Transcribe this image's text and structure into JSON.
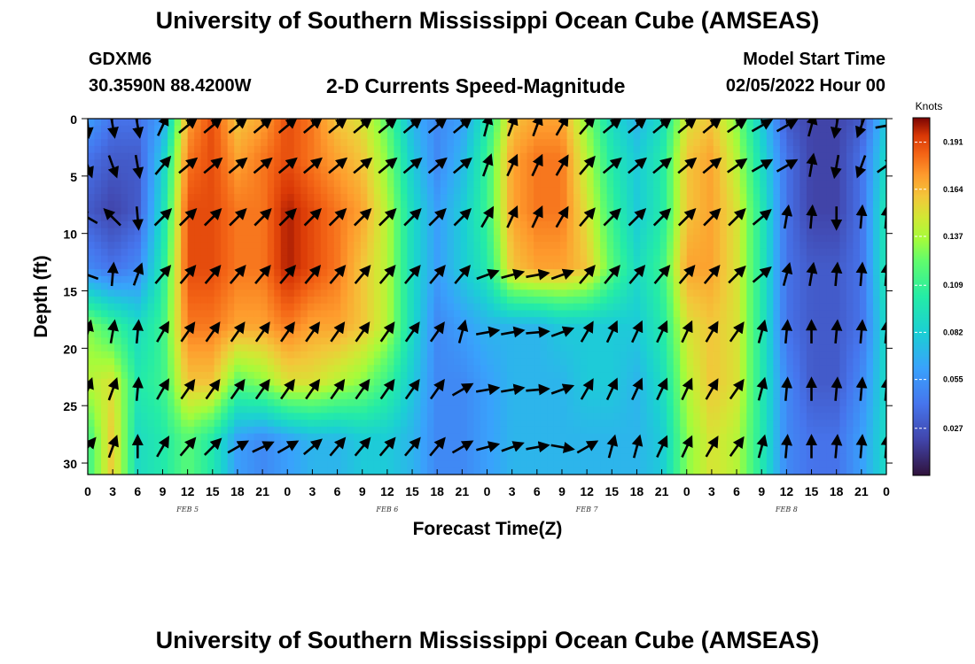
{
  "header": {
    "title": "University of Southern Mississippi Ocean Cube (AMSEAS)",
    "station": "GDXM6",
    "coords": "30.3590N  88.4200W",
    "subtitle": "2-D Currents Speed-Magnitude",
    "model_start_label": "Model Start Time",
    "model_start_value": "02/05/2022 Hour 00"
  },
  "footer": {
    "title": "University of Southern Mississippi Ocean Cube (AMSEAS)"
  },
  "chart_data": {
    "type": "heatmap",
    "xlabel": "Forecast Time(Z)",
    "ylabel": "Depth (ft)",
    "x_ticks": [
      "0",
      "3",
      "6",
      "9",
      "12",
      "15",
      "18",
      "21",
      "0",
      "3",
      "6",
      "9",
      "12",
      "15",
      "18",
      "21",
      "0",
      "3",
      "6",
      "9",
      "12",
      "15",
      "18",
      "21",
      "0",
      "3",
      "6",
      "9",
      "12",
      "15",
      "18",
      "21",
      "0"
    ],
    "day_labels": [
      {
        "label": "FEB 5",
        "hour": 12
      },
      {
        "label": "FEB 6",
        "hour": 36
      },
      {
        "label": "FEB 7",
        "hour": 60
      },
      {
        "label": "FEB 8",
        "hour": 84
      }
    ],
    "x_range_hours": [
      0,
      96
    ],
    "y_ticks": [
      0,
      5,
      10,
      15,
      20,
      25,
      30
    ],
    "y_range": [
      0,
      31
    ],
    "colorbar": {
      "unit": "Knots",
      "labels": [
        "0.191",
        "0.164",
        "0.137",
        "0.109",
        "0.082",
        "0.055",
        "0.027"
      ],
      "range": [
        0.0,
        0.205
      ]
    },
    "depth_rows": [
      0,
      3.5,
      8,
      13,
      18,
      23,
      28
    ],
    "time_hours": [
      0,
      3,
      6,
      9,
      12,
      15,
      18,
      21,
      24,
      27,
      30,
      33,
      36,
      39,
      42,
      45,
      48,
      51,
      54,
      57,
      60,
      63,
      66,
      69,
      72,
      75,
      78,
      81,
      84,
      87,
      90,
      93,
      96
    ],
    "speed_knots": [
      [
        0.06,
        0.04,
        0.04,
        0.06,
        0.17,
        0.19,
        0.16,
        0.17,
        0.19,
        0.18,
        0.16,
        0.15,
        0.12,
        0.07,
        0.05,
        0.06,
        0.1,
        0.16,
        0.17,
        0.17,
        0.13,
        0.09,
        0.07,
        0.09,
        0.15,
        0.16,
        0.13,
        0.08,
        0.03,
        0.02,
        0.02,
        0.03,
        0.08
      ],
      [
        0.04,
        0.03,
        0.03,
        0.08,
        0.18,
        0.19,
        0.17,
        0.18,
        0.19,
        0.18,
        0.17,
        0.16,
        0.13,
        0.08,
        0.05,
        0.07,
        0.11,
        0.17,
        0.18,
        0.18,
        0.14,
        0.1,
        0.08,
        0.1,
        0.16,
        0.17,
        0.14,
        0.09,
        0.04,
        0.02,
        0.02,
        0.04,
        0.09
      ],
      [
        0.03,
        0.02,
        0.03,
        0.09,
        0.19,
        0.19,
        0.18,
        0.18,
        0.2,
        0.19,
        0.18,
        0.17,
        0.14,
        0.09,
        0.06,
        0.08,
        0.11,
        0.17,
        0.18,
        0.18,
        0.15,
        0.11,
        0.08,
        0.1,
        0.16,
        0.17,
        0.15,
        0.1,
        0.04,
        0.02,
        0.02,
        0.04,
        0.1
      ],
      [
        0.05,
        0.04,
        0.05,
        0.1,
        0.19,
        0.19,
        0.18,
        0.18,
        0.2,
        0.19,
        0.18,
        0.16,
        0.14,
        0.09,
        0.06,
        0.08,
        0.1,
        0.16,
        0.17,
        0.17,
        0.16,
        0.12,
        0.09,
        0.11,
        0.17,
        0.17,
        0.15,
        0.1,
        0.04,
        0.03,
        0.03,
        0.04,
        0.1
      ],
      [
        0.13,
        0.11,
        0.09,
        0.11,
        0.18,
        0.18,
        0.17,
        0.17,
        0.18,
        0.17,
        0.17,
        0.16,
        0.14,
        0.09,
        0.05,
        0.06,
        0.07,
        0.07,
        0.07,
        0.08,
        0.08,
        0.08,
        0.08,
        0.1,
        0.15,
        0.16,
        0.15,
        0.1,
        0.04,
        0.03,
        0.03,
        0.04,
        0.09
      ],
      [
        0.14,
        0.15,
        0.1,
        0.11,
        0.16,
        0.16,
        0.12,
        0.13,
        0.15,
        0.15,
        0.14,
        0.13,
        0.11,
        0.08,
        0.05,
        0.05,
        0.06,
        0.07,
        0.07,
        0.07,
        0.08,
        0.08,
        0.07,
        0.09,
        0.14,
        0.16,
        0.15,
        0.1,
        0.05,
        0.03,
        0.03,
        0.05,
        0.09
      ],
      [
        0.11,
        0.16,
        0.09,
        0.1,
        0.12,
        0.1,
        0.06,
        0.05,
        0.06,
        0.07,
        0.07,
        0.08,
        0.08,
        0.07,
        0.05,
        0.05,
        0.06,
        0.07,
        0.07,
        0.07,
        0.07,
        0.07,
        0.07,
        0.08,
        0.13,
        0.15,
        0.14,
        0.1,
        0.05,
        0.04,
        0.04,
        0.06,
        0.09
      ]
    ],
    "arrow_direction_deg": [
      [
        175,
        170,
        170,
        25,
        50,
        50,
        50,
        50,
        50,
        50,
        50,
        50,
        50,
        50,
        50,
        50,
        15,
        20,
        20,
        30,
        40,
        50,
        50,
        50,
        50,
        50,
        55,
        60,
        60,
        15,
        190,
        200,
        80
      ],
      [
        160,
        160,
        170,
        40,
        50,
        50,
        50,
        50,
        50,
        50,
        50,
        50,
        50,
        50,
        50,
        50,
        20,
        25,
        25,
        30,
        40,
        50,
        50,
        50,
        50,
        50,
        55,
        60,
        60,
        10,
        190,
        200,
        55
      ],
      [
        300,
        315,
        175,
        45,
        45,
        45,
        45,
        45,
        45,
        45,
        45,
        45,
        45,
        45,
        45,
        45,
        30,
        25,
        25,
        30,
        40,
        45,
        45,
        45,
        45,
        45,
        45,
        50,
        10,
        5,
        180,
        5,
        5
      ],
      [
        290,
        5,
        20,
        40,
        40,
        40,
        40,
        40,
        40,
        40,
        40,
        40,
        40,
        40,
        40,
        40,
        70,
        75,
        80,
        70,
        40,
        40,
        40,
        40,
        40,
        40,
        45,
        50,
        15,
        10,
        5,
        5,
        5
      ],
      [
        15,
        10,
        5,
        30,
        35,
        35,
        35,
        35,
        35,
        35,
        35,
        35,
        35,
        35,
        35,
        15,
        80,
        80,
        85,
        70,
        30,
        25,
        25,
        25,
        25,
        30,
        35,
        15,
        5,
        0,
        5,
        5,
        5
      ],
      [
        20,
        20,
        5,
        30,
        35,
        35,
        35,
        35,
        35,
        35,
        35,
        35,
        35,
        35,
        35,
        60,
        80,
        80,
        85,
        70,
        30,
        25,
        25,
        25,
        25,
        30,
        35,
        15,
        5,
        0,
        5,
        5,
        5
      ],
      [
        40,
        20,
        0,
        30,
        40,
        45,
        60,
        65,
        60,
        50,
        40,
        40,
        40,
        40,
        40,
        60,
        75,
        70,
        80,
        100,
        60,
        15,
        15,
        25,
        25,
        30,
        35,
        15,
        5,
        0,
        5,
        5,
        5
      ]
    ]
  }
}
